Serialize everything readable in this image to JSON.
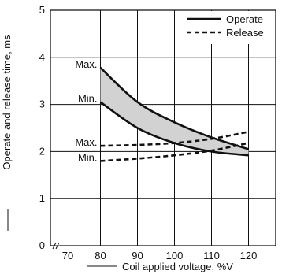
{
  "chart_data": {
    "type": "line",
    "title": "",
    "xlabel": "Coil applied voltage, %V",
    "ylabel": "Operate and release time, ms",
    "xlim": [
      70,
      120
    ],
    "ylim": [
      0,
      5
    ],
    "x_axis_break": true,
    "x_ticks": [
      "70",
      "80",
      "90",
      "100",
      "110",
      "120"
    ],
    "y_ticks": [
      "0",
      "1",
      "2",
      "3",
      "4",
      "5"
    ],
    "grid": true,
    "legend_position": "top-right",
    "legend": [
      {
        "label": "Operate",
        "style": "solid"
      },
      {
        "label": "Release",
        "style": "dashed"
      }
    ],
    "band_fill_color": "#d2d2d2",
    "series": [
      {
        "name": "Operate Max.",
        "style": "solid",
        "x": [
          80,
          90,
          100,
          110,
          120
        ],
        "y": [
          3.78,
          3.05,
          2.62,
          2.3,
          2.05
        ]
      },
      {
        "name": "Operate Min.",
        "style": "solid",
        "x": [
          80,
          90,
          100,
          110,
          120
        ],
        "y": [
          3.05,
          2.5,
          2.18,
          2.0,
          1.92
        ]
      },
      {
        "name": "Release Max.",
        "style": "dashed",
        "x": [
          80,
          90,
          100,
          110,
          120
        ],
        "y": [
          2.12,
          2.14,
          2.18,
          2.27,
          2.42
        ]
      },
      {
        "name": "Release Min.",
        "style": "dashed",
        "x": [
          80,
          90,
          100,
          110,
          120
        ],
        "y": [
          1.8,
          1.85,
          1.92,
          2.02,
          2.18
        ]
      }
    ],
    "annotations": [
      {
        "text": "Max.",
        "x": 80,
        "y": 3.78
      },
      {
        "text": "Min.",
        "x": 80,
        "y": 3.05
      },
      {
        "text": "Max.",
        "x": 80,
        "y": 2.12
      },
      {
        "text": "Min.",
        "x": 80,
        "y": 1.8
      }
    ]
  }
}
